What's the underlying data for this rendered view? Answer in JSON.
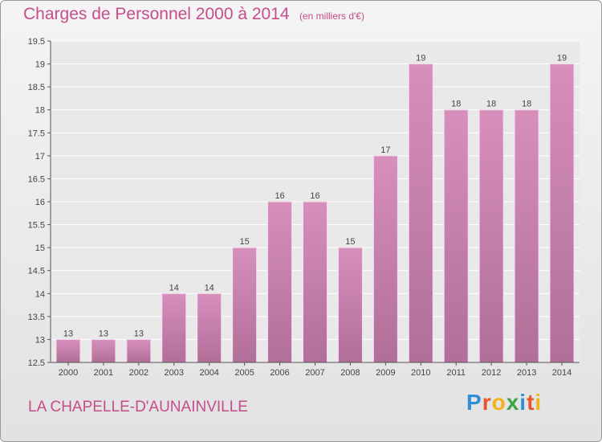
{
  "header": {
    "title": "Charges de Personnel 2000 à 2014",
    "subtitle": "(en milliers d'€)"
  },
  "footer": {
    "commune": "LA CHAPELLE-D'AUNAINVILLE",
    "logo_letters": [
      "P",
      "r",
      "o",
      "x",
      "i",
      "t",
      "i"
    ],
    "logo_colors": [
      "#2e8fd8",
      "#e8542c",
      "#f2b21b",
      "#3aa44b",
      "#2e8fd8",
      "#e8542c",
      "#f2b21b"
    ]
  },
  "chart_data": {
    "type": "bar",
    "title": "Charges de Personnel 2000 à 2014",
    "subtitle": "(en milliers d'€)",
    "categories": [
      "2000",
      "2001",
      "2002",
      "2003",
      "2004",
      "2005",
      "2006",
      "2007",
      "2008",
      "2009",
      "2010",
      "2011",
      "2012",
      "2013",
      "2014"
    ],
    "values": [
      13,
      13,
      13,
      14,
      14,
      15,
      16,
      16,
      15,
      17,
      19,
      18,
      18,
      18,
      19
    ],
    "value_labels": [
      "13",
      "13",
      "13",
      "14",
      "14",
      "15",
      "16",
      "16",
      "15",
      "17",
      "19",
      "18",
      "18",
      "18",
      "19"
    ],
    "ylim": [
      12.5,
      19.5
    ],
    "yticks": [
      12.5,
      13,
      13.5,
      14,
      14.5,
      15,
      15.5,
      16,
      16.5,
      17,
      17.5,
      18,
      18.5,
      19,
      19.5
    ],
    "ytick_labels": [
      "12.5",
      "13",
      "13.5",
      "14",
      "14.5",
      "15",
      "15.5",
      "16",
      "16.5",
      "17",
      "17.5",
      "18",
      "18.5",
      "19",
      "19.5"
    ],
    "grid": true,
    "bar_color": "#d78fbb",
    "bar_color_dark": "#b06f98"
  }
}
